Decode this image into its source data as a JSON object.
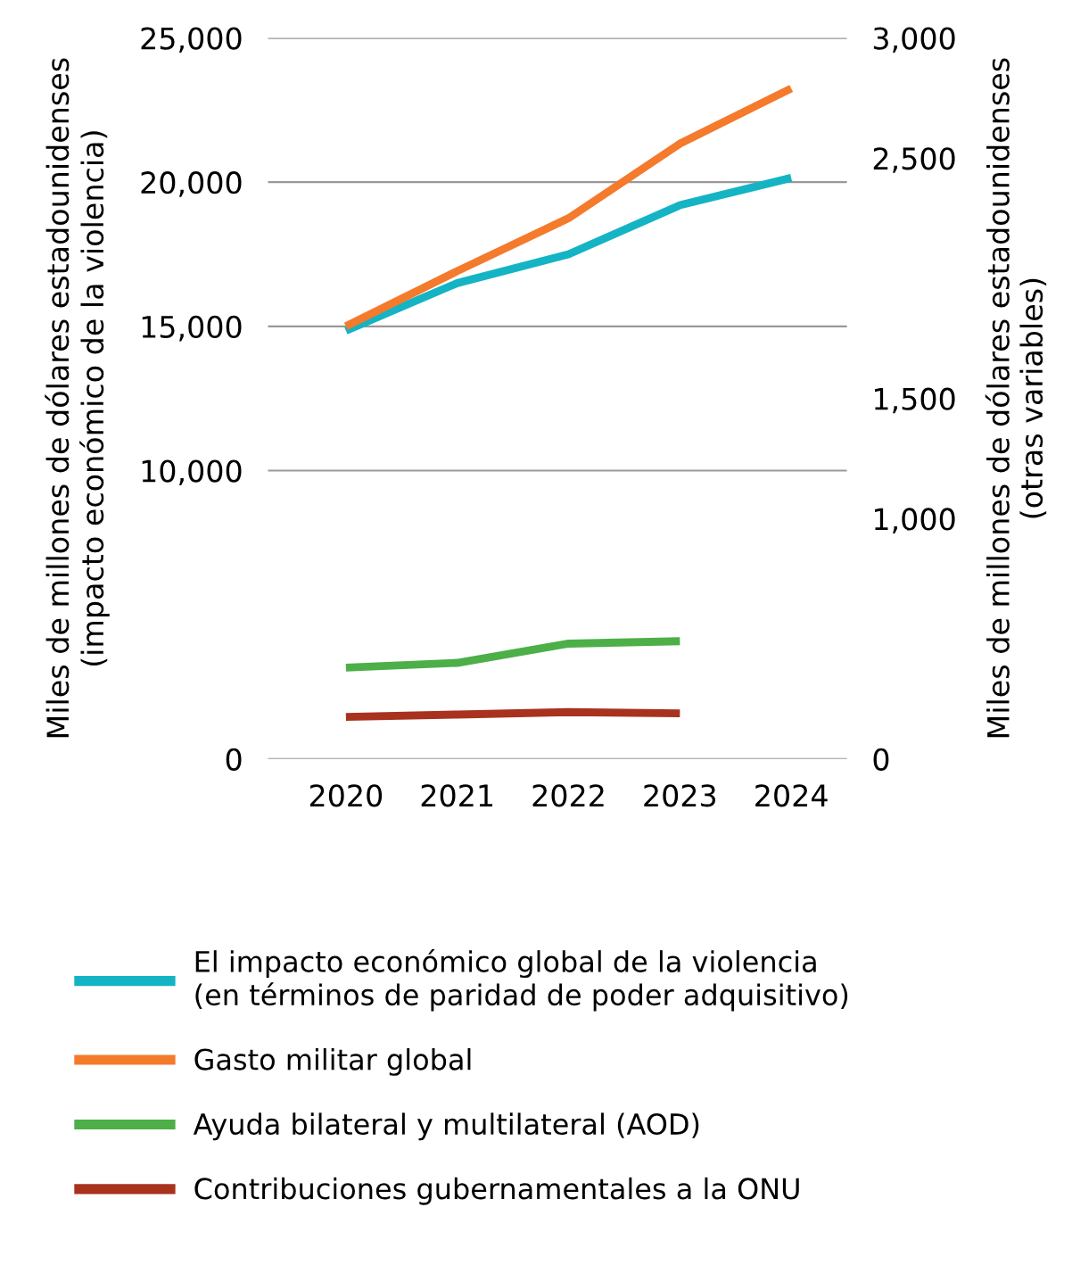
{
  "chart_data": {
    "type": "line",
    "categories": [
      "2020",
      "2021",
      "2022",
      "2023",
      "2024"
    ],
    "ylabel": "Miles de millones de dólares estadounidenses\n(impacto económico de la violencia)",
    "y2label": "Miles de millones de dólares estadounidenses\n(otras variables)",
    "ylim": [
      0,
      25000
    ],
    "yticks": [
      0,
      {
        "value": 10000,
        "label": "10,000"
      },
      {
        "value": 15000,
        "label": "15,000"
      },
      {
        "value": 20000,
        "label": "20,000"
      },
      {
        "value": 25000,
        "label": "25,000"
      }
    ],
    "y2lim": [
      0,
      3000
    ],
    "y2ticks": [
      0,
      {
        "value": 1000,
        "label": "1,000"
      },
      {
        "value": 1500,
        "label": "1,500"
      },
      {
        "value": 2500,
        "label": "2,500"
      },
      {
        "value": 3000,
        "label": "3,000"
      }
    ],
    "grid": "y",
    "legend": "bottom",
    "line_style": "solid",
    "marker": "none",
    "series": [
      {
        "name": "El impacto económico global de la violencia\n(en términos de paridad de poder adquisitivo)",
        "color": "#14b4c4",
        "values": [
          14850,
          16500,
          17500,
          19200,
          20150
        ]
      },
      {
        "name": "Gasto militar global",
        "color": "#f47a2c",
        "axis": "y2",
        "values": [
          1800,
          2030,
          2250,
          2560,
          2790
        ]
      },
      {
        "name": "Ayuda bilateral y multilateral (AOD)",
        "color": "#4caf48",
        "axis": "y2",
        "values": [
          380,
          400,
          480,
          490,
          null
        ]
      },
      {
        "name": "Contribuciones gubernamentales a la ONU",
        "color": "#a8321e",
        "axis": "y2",
        "values": [
          175,
          185,
          195,
          190,
          null
        ]
      }
    ]
  }
}
